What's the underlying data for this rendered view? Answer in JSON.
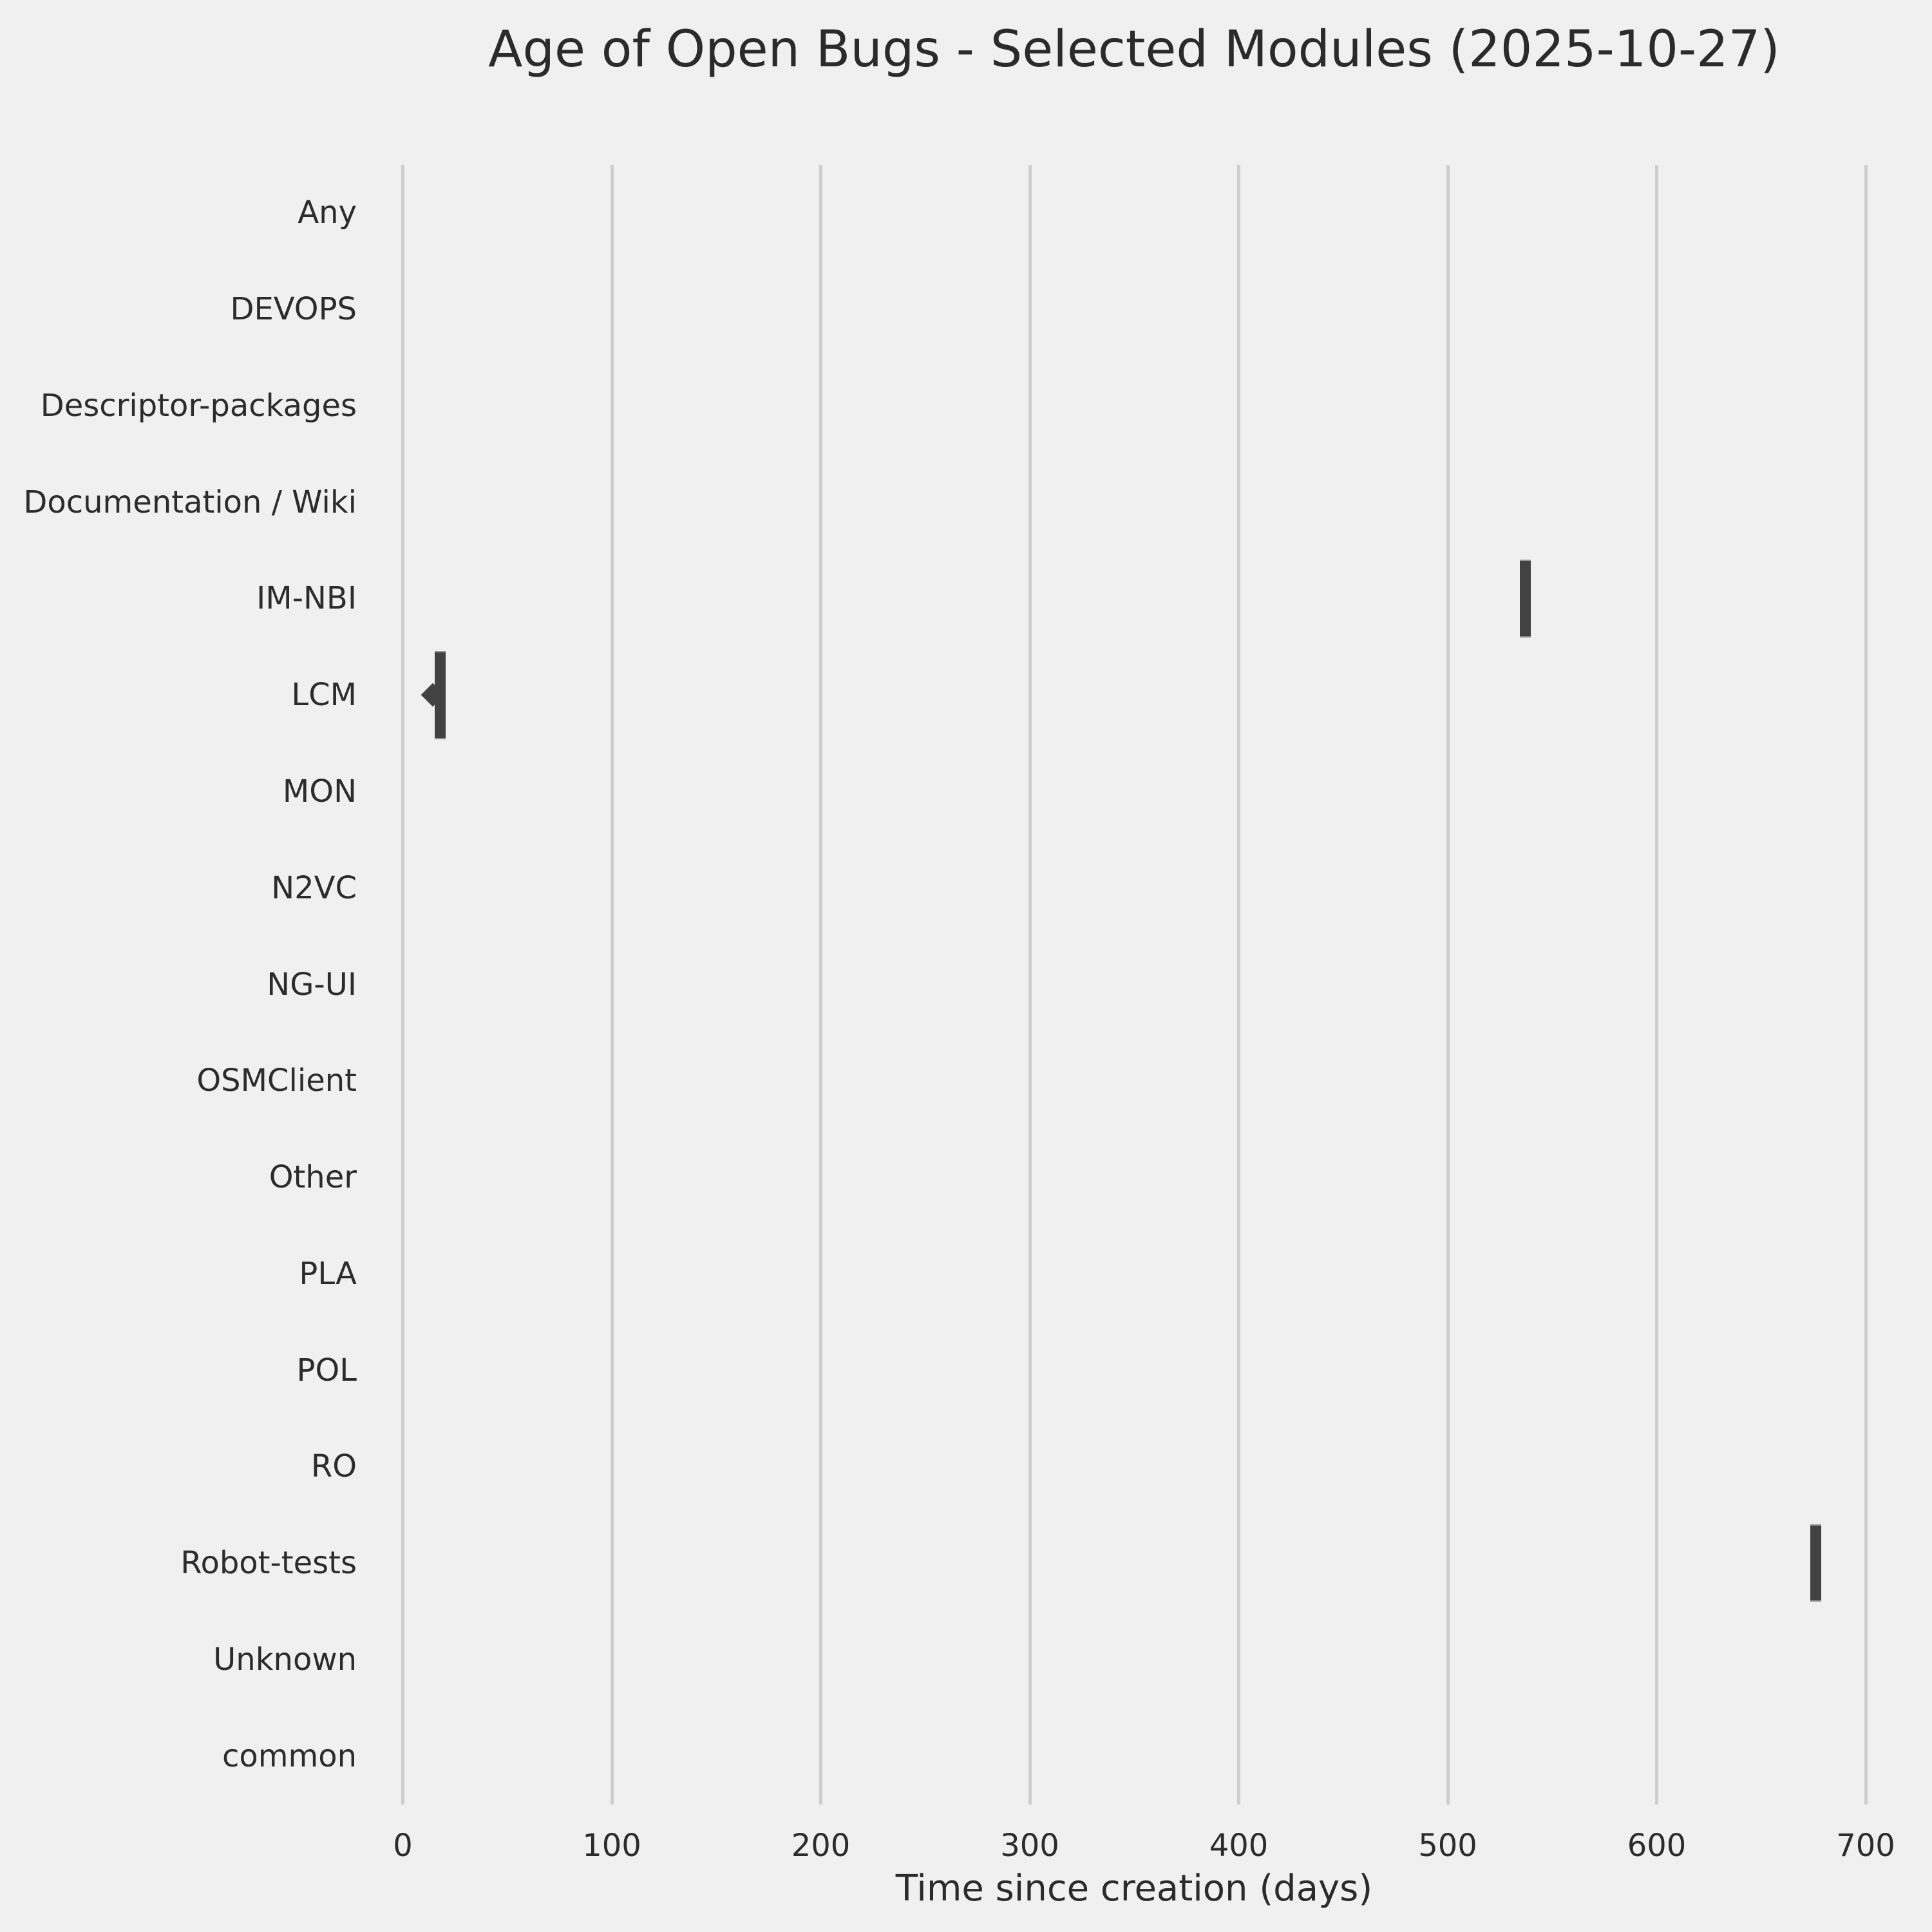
{
  "title": "Age of Open Bugs - Selected Modules (2025-10-27)",
  "colors": {
    "background": "#F0F0F0",
    "grid": "#CDCDCD",
    "box_fill": "#424242",
    "box_edge": "#959595",
    "text": "#2B2B2B"
  },
  "chart_data": {
    "type": "boxplot",
    "orientation": "horizontal",
    "title": "Age of Open Bugs - Selected Modules (2025-10-27)",
    "xlabel": "Time since creation (days)",
    "ylabel": "",
    "categories": [
      "Any",
      "DEVOPS",
      "Descriptor-packages",
      "Documentation / Wiki",
      "IM-NBI",
      "LCM",
      "MON",
      "N2VC",
      "NG-UI",
      "OSMClient",
      "Other",
      "PLA",
      "POL",
      "RO",
      "Robot-tests",
      "Unknown",
      "common"
    ],
    "xlim": [
      0,
      700
    ],
    "xticks": [
      0,
      100,
      200,
      300,
      400,
      500,
      600,
      700
    ],
    "grid": "vertical-only",
    "legend": "none",
    "boxes": [
      {
        "category": "IM-NBI",
        "whisker_low": 534.5,
        "q1": 534.5,
        "median": 537.1,
        "q3": 539.8,
        "whisker_high": 539.8,
        "fliers": [],
        "rel_thickness": 0.81
      },
      {
        "category": "LCM",
        "whisker_low": 15.3,
        "q1": 15.3,
        "median": 17.8,
        "q3": 20.4,
        "whisker_high": 20.4,
        "fliers": [
          14.3
        ],
        "rel_thickness": 0.915
      },
      {
        "category": "Robot-tests",
        "whisker_low": 673.5,
        "q1": 673.5,
        "median": 676.1,
        "q3": 678.7,
        "whisker_high": 678.7,
        "fliers": [],
        "rel_thickness": 0.8
      }
    ],
    "empty_categories": [
      "Any",
      "DEVOPS",
      "Descriptor-packages",
      "Documentation / Wiki",
      "MON",
      "N2VC",
      "NG-UI",
      "OSMClient",
      "Other",
      "PLA",
      "POL",
      "RO",
      "Unknown",
      "common"
    ]
  }
}
